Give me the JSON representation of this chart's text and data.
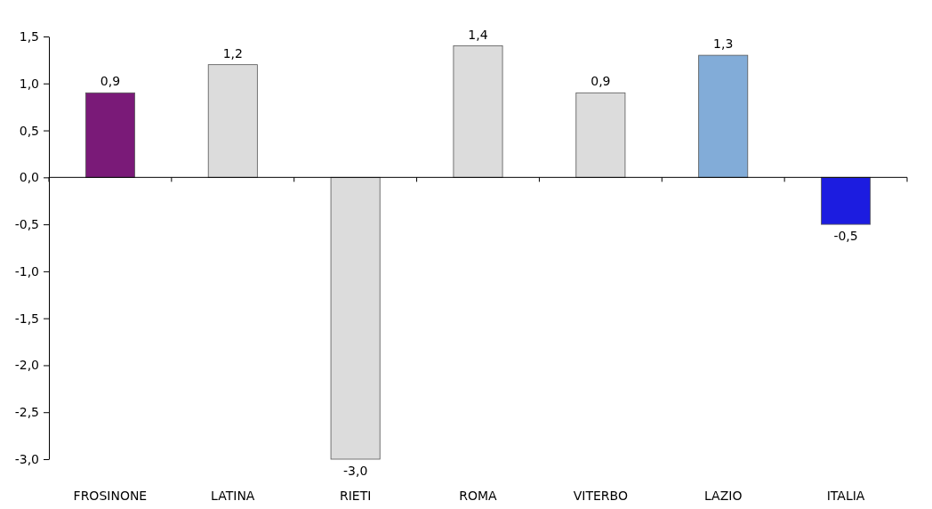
{
  "chart_data": {
    "type": "bar",
    "categories": [
      "FROSINONE",
      "LATINA",
      "RIETI",
      "ROMA",
      "VITERBO",
      "LAZIO",
      "ITALIA"
    ],
    "values": [
      0.9,
      1.2,
      -3.0,
      1.4,
      0.9,
      1.3,
      -0.5
    ],
    "colors": [
      "#7a1a78",
      "#dcdcdc",
      "#dcdcdc",
      "#dcdcdc",
      "#dcdcdc",
      "#82acd8",
      "#1c1ce0"
    ],
    "value_labels": [
      "0,9",
      "1,2",
      "-3,0",
      "1,4",
      "0,9",
      "1,3",
      "-0,5"
    ],
    "ylim": [
      -3.0,
      1.5
    ],
    "yticks": [
      {
        "value": -3,
        "label": "-3,0"
      },
      {
        "value": -2.5,
        "label": "-2,5"
      },
      {
        "value": -2,
        "label": "-2,0"
      },
      {
        "value": -1.5,
        "label": "-1,5"
      },
      {
        "value": -1,
        "label": "-1,0"
      },
      {
        "value": -0.5,
        "label": "-0,5"
      },
      {
        "value": 0,
        "label": "0,0"
      },
      {
        "value": 0.5,
        "label": "0,5"
      },
      {
        "value": 1,
        "label": "1,0"
      },
      {
        "value": 1.5,
        "label": "1,5"
      }
    ],
    "orientation": "vertical"
  }
}
